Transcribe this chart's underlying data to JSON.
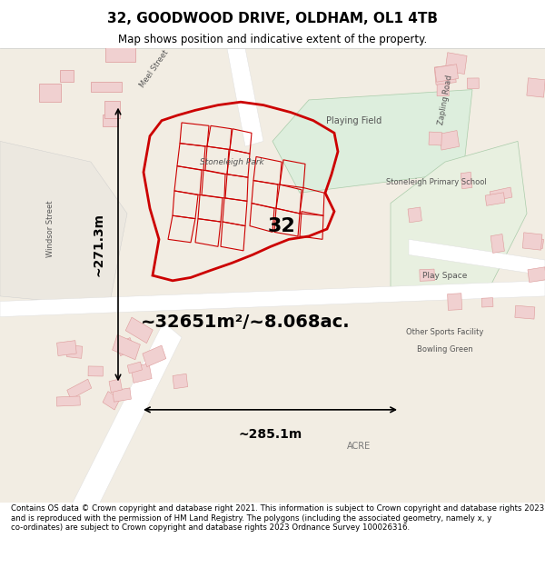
{
  "title": "32, GOODWOOD DRIVE, OLDHAM, OL1 4TB",
  "subtitle": "Map shows position and indicative extent of the property.",
  "area_m2": "~32651m²/~8.068ac.",
  "width_label": "~285.1m",
  "height_label": "~271.3m",
  "number_label": "32",
  "footer": "Contains OS data © Crown copyright and database right 2021. This information is subject to Crown copyright and database rights 2023 and is reproduced with the permission of HM Land Registry. The polygons (including the associated geometry, namely x, y co-ordinates) are subject to Crown copyright and database rights 2023 Ordnance Survey 100026316.",
  "bg_color": "#f0ece4",
  "map_bg": "#f5f0e8",
  "road_color": "#ffffff",
  "plot_color": "#cc0000",
  "text_color": "#000000",
  "title_color": "#000000",
  "footer_bg": "#ffffff",
  "header_bg": "#ffffff"
}
